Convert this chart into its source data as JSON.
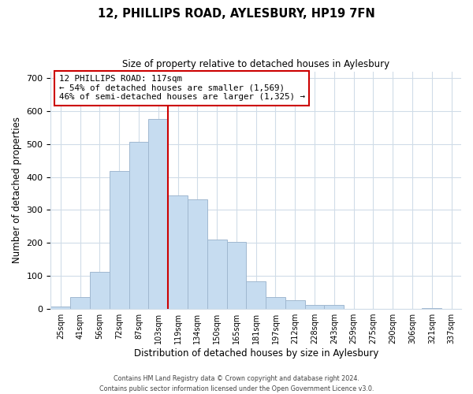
{
  "title": "12, PHILLIPS ROAD, AYLESBURY, HP19 7FN",
  "subtitle": "Size of property relative to detached houses in Aylesbury",
  "xlabel": "Distribution of detached houses by size in Aylesbury",
  "ylabel": "Number of detached properties",
  "bar_labels": [
    "25sqm",
    "41sqm",
    "56sqm",
    "72sqm",
    "87sqm",
    "103sqm",
    "119sqm",
    "134sqm",
    "150sqm",
    "165sqm",
    "181sqm",
    "197sqm",
    "212sqm",
    "228sqm",
    "243sqm",
    "259sqm",
    "275sqm",
    "290sqm",
    "306sqm",
    "321sqm",
    "337sqm"
  ],
  "bar_values": [
    8,
    35,
    112,
    418,
    507,
    575,
    345,
    333,
    210,
    203,
    83,
    37,
    26,
    13,
    13,
    0,
    0,
    0,
    0,
    2,
    0
  ],
  "bar_color": "#c6dcf0",
  "bar_edge_color": "#a0b8d0",
  "highlight_line_color": "#cc0000",
  "annotation_line1": "12 PHILLIPS ROAD: 117sqm",
  "annotation_line2": "← 54% of detached houses are smaller (1,569)",
  "annotation_line3": "46% of semi-detached houses are larger (1,325) →",
  "annotation_box_color": "#ffffff",
  "annotation_box_edge_color": "#cc0000",
  "ylim": [
    0,
    720
  ],
  "yticks": [
    0,
    100,
    200,
    300,
    400,
    500,
    600,
    700
  ],
  "footer_line1": "Contains HM Land Registry data © Crown copyright and database right 2024.",
  "footer_line2": "Contains public sector information licensed under the Open Government Licence v3.0.",
  "bg_color": "#ffffff",
  "grid_color": "#d0dce8"
}
